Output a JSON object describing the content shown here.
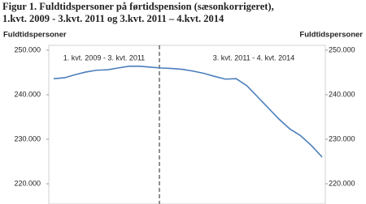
{
  "chart_data": {
    "type": "line",
    "title": [
      "Figur 1. Fuldtidspersoner på førtidspension (sæsonkorrigeret),",
      "1.kvt. 2009 - 3.kvt. 2011 og 3.kvt. 2011 – 4.kvt. 2014"
    ],
    "y_label": "Fuldtidspersoner",
    "y2_label": "Fuldtidspersoner",
    "annotations": [
      "1. kvt. 2009 - 3. kvt. 2011",
      "3. kvt. 2011 - 4. kvt. 2014"
    ],
    "categories": [
      null,
      null,
      null,
      null,
      null,
      null,
      null,
      null,
      null,
      null,
      null,
      null,
      null,
      null,
      null,
      null,
      null,
      null,
      null,
      null,
      null,
      null,
      null,
      null,
      null,
      null
    ],
    "series": [
      {
        "name": null,
        "color": "#4a7ebb",
        "values": [
          243600,
          243800,
          244500,
          245100,
          245500,
          245600,
          246000,
          246400,
          246400,
          246200,
          246000,
          245900,
          245700,
          245300,
          244800,
          244100,
          243500,
          243600,
          242000,
          239500,
          237000,
          234500,
          232300,
          230800,
          228600,
          226000
        ]
      }
    ],
    "ylim": [
      216000,
      250000
    ],
    "yticks": [
      {
        "value": 220000,
        "label": "220.000"
      },
      {
        "value": 230000,
        "label": "230.000"
      },
      {
        "value": 240000,
        "label": "240.000"
      },
      {
        "value": 250000,
        "label": "250.000"
      }
    ],
    "y2lim": [
      216000,
      250000
    ],
    "y2ticks": [
      {
        "value": 220000,
        "label": "220.000"
      },
      {
        "value": 230000,
        "label": "230.000"
      },
      {
        "value": 240000,
        "label": "240.000"
      },
      {
        "value": 250000,
        "label": "250.000"
      }
    ],
    "grid": false
  }
}
